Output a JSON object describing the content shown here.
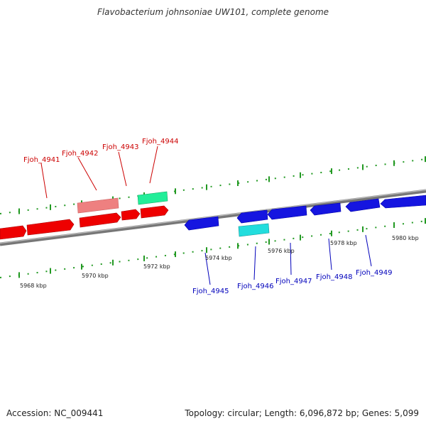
{
  "title": "Flavobacterium johnsoniae UW101, complete genome",
  "footer": {
    "accession": "Accession: NC_009441",
    "stats": "Topology: circular; Length: 6,096,872 bp; Genes: 5,099"
  },
  "ruler_ticks": [
    {
      "label": "5968 kbp",
      "kbp": 5968
    },
    {
      "label": "5970 kbp",
      "kbp": 5970
    },
    {
      "label": "5972 kbp",
      "kbp": 5972
    },
    {
      "label": "5974 kbp",
      "kbp": 5974
    },
    {
      "label": "5976 kbp",
      "kbp": 5976
    },
    {
      "label": "5978 kbp",
      "kbp": 5978
    },
    {
      "label": "5980 kbp",
      "kbp": 5980
    }
  ],
  "gene_labels": {
    "top": [
      "Fjoh_4941",
      "Fjoh_4942",
      "Fjoh_4943",
      "Fjoh_4944"
    ],
    "bottom": [
      "Fjoh_4945",
      "Fjoh_4946",
      "Fjoh_4947",
      "Fjoh_4948",
      "Fjoh_4949"
    ]
  },
  "colors": {
    "forward_gene": "#ee0000",
    "forward_gene_light": "#ee8080",
    "forward_rna": "#22ee99",
    "reverse_gene": "#1515e0",
    "reverse_rna": "#22dddd",
    "top_label": "#cc0000",
    "bottom_label": "#0000bb",
    "backbone": "#888888",
    "dots_top": "#229922",
    "dots_bottom": "#229922"
  }
}
